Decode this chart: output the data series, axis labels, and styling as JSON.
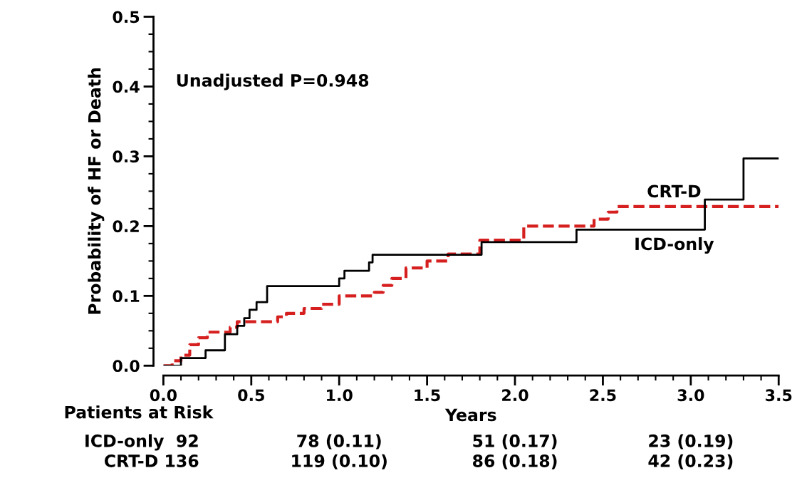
{
  "chart_data": {
    "type": "step",
    "xlabel": "Years",
    "ylabel": "Probability of HF or Death",
    "xlim": [
      0,
      3.5
    ],
    "xticks": [
      {
        "value": 0,
        "label": "0.0"
      },
      0.5,
      {
        "value": 1,
        "label": "1.0"
      },
      1.5,
      {
        "value": 2,
        "label": "2.0"
      },
      2.5,
      {
        "value": 3,
        "label": "3.0"
      },
      3.5
    ],
    "ylim": [
      0,
      0.5
    ],
    "yticks": [
      {
        "value": 0,
        "label": "0.0"
      },
      0.1,
      0.2,
      0.3,
      0.4,
      0.5
    ],
    "grid": false,
    "legend": false,
    "series": [
      {
        "name": "CRT-D",
        "color": "#d62020",
        "line_style": "dashed",
        "x": [
          0,
          0.05,
          0.1,
          0.15,
          0.2,
          0.25,
          0.38,
          0.42,
          0.53,
          0.65,
          0.7,
          0.8,
          0.9,
          1.0,
          1.2,
          1.25,
          1.3,
          1.38,
          1.5,
          1.62,
          1.8,
          2.05,
          2.45,
          2.53,
          2.58,
          3.5
        ],
        "values": [
          0,
          0.007,
          0.015,
          0.03,
          0.04,
          0.048,
          0.055,
          0.063,
          0.063,
          0.07,
          0.075,
          0.082,
          0.088,
          0.1,
          0.105,
          0.115,
          0.125,
          0.14,
          0.15,
          0.16,
          0.18,
          0.2,
          0.21,
          0.22,
          0.228,
          0.228
        ]
      },
      {
        "name": "ICD-only",
        "color": "#000000",
        "line_style": "solid",
        "x": [
          0,
          0.1,
          0.24,
          0.35,
          0.42,
          0.46,
          0.49,
          0.53,
          0.59,
          1.0,
          1.03,
          1.17,
          1.19,
          1.81,
          2.35,
          3.08,
          3.3,
          3.5
        ],
        "values": [
          0,
          0.011,
          0.022,
          0.045,
          0.057,
          0.068,
          0.08,
          0.091,
          0.114,
          0.125,
          0.136,
          0.148,
          0.159,
          0.177,
          0.195,
          0.238,
          0.297,
          0.297
        ]
      }
    ],
    "annotations": [
      "Unadjusted P=0.948",
      "Patients at Risk",
      "ICD-only  92",
      "78 (0.11)",
      "51 (0.17)",
      "23 (0.19)",
      "CRT-D 136",
      "119 (0.10)",
      "86 (0.18)",
      "42 (0.23)"
    ]
  }
}
